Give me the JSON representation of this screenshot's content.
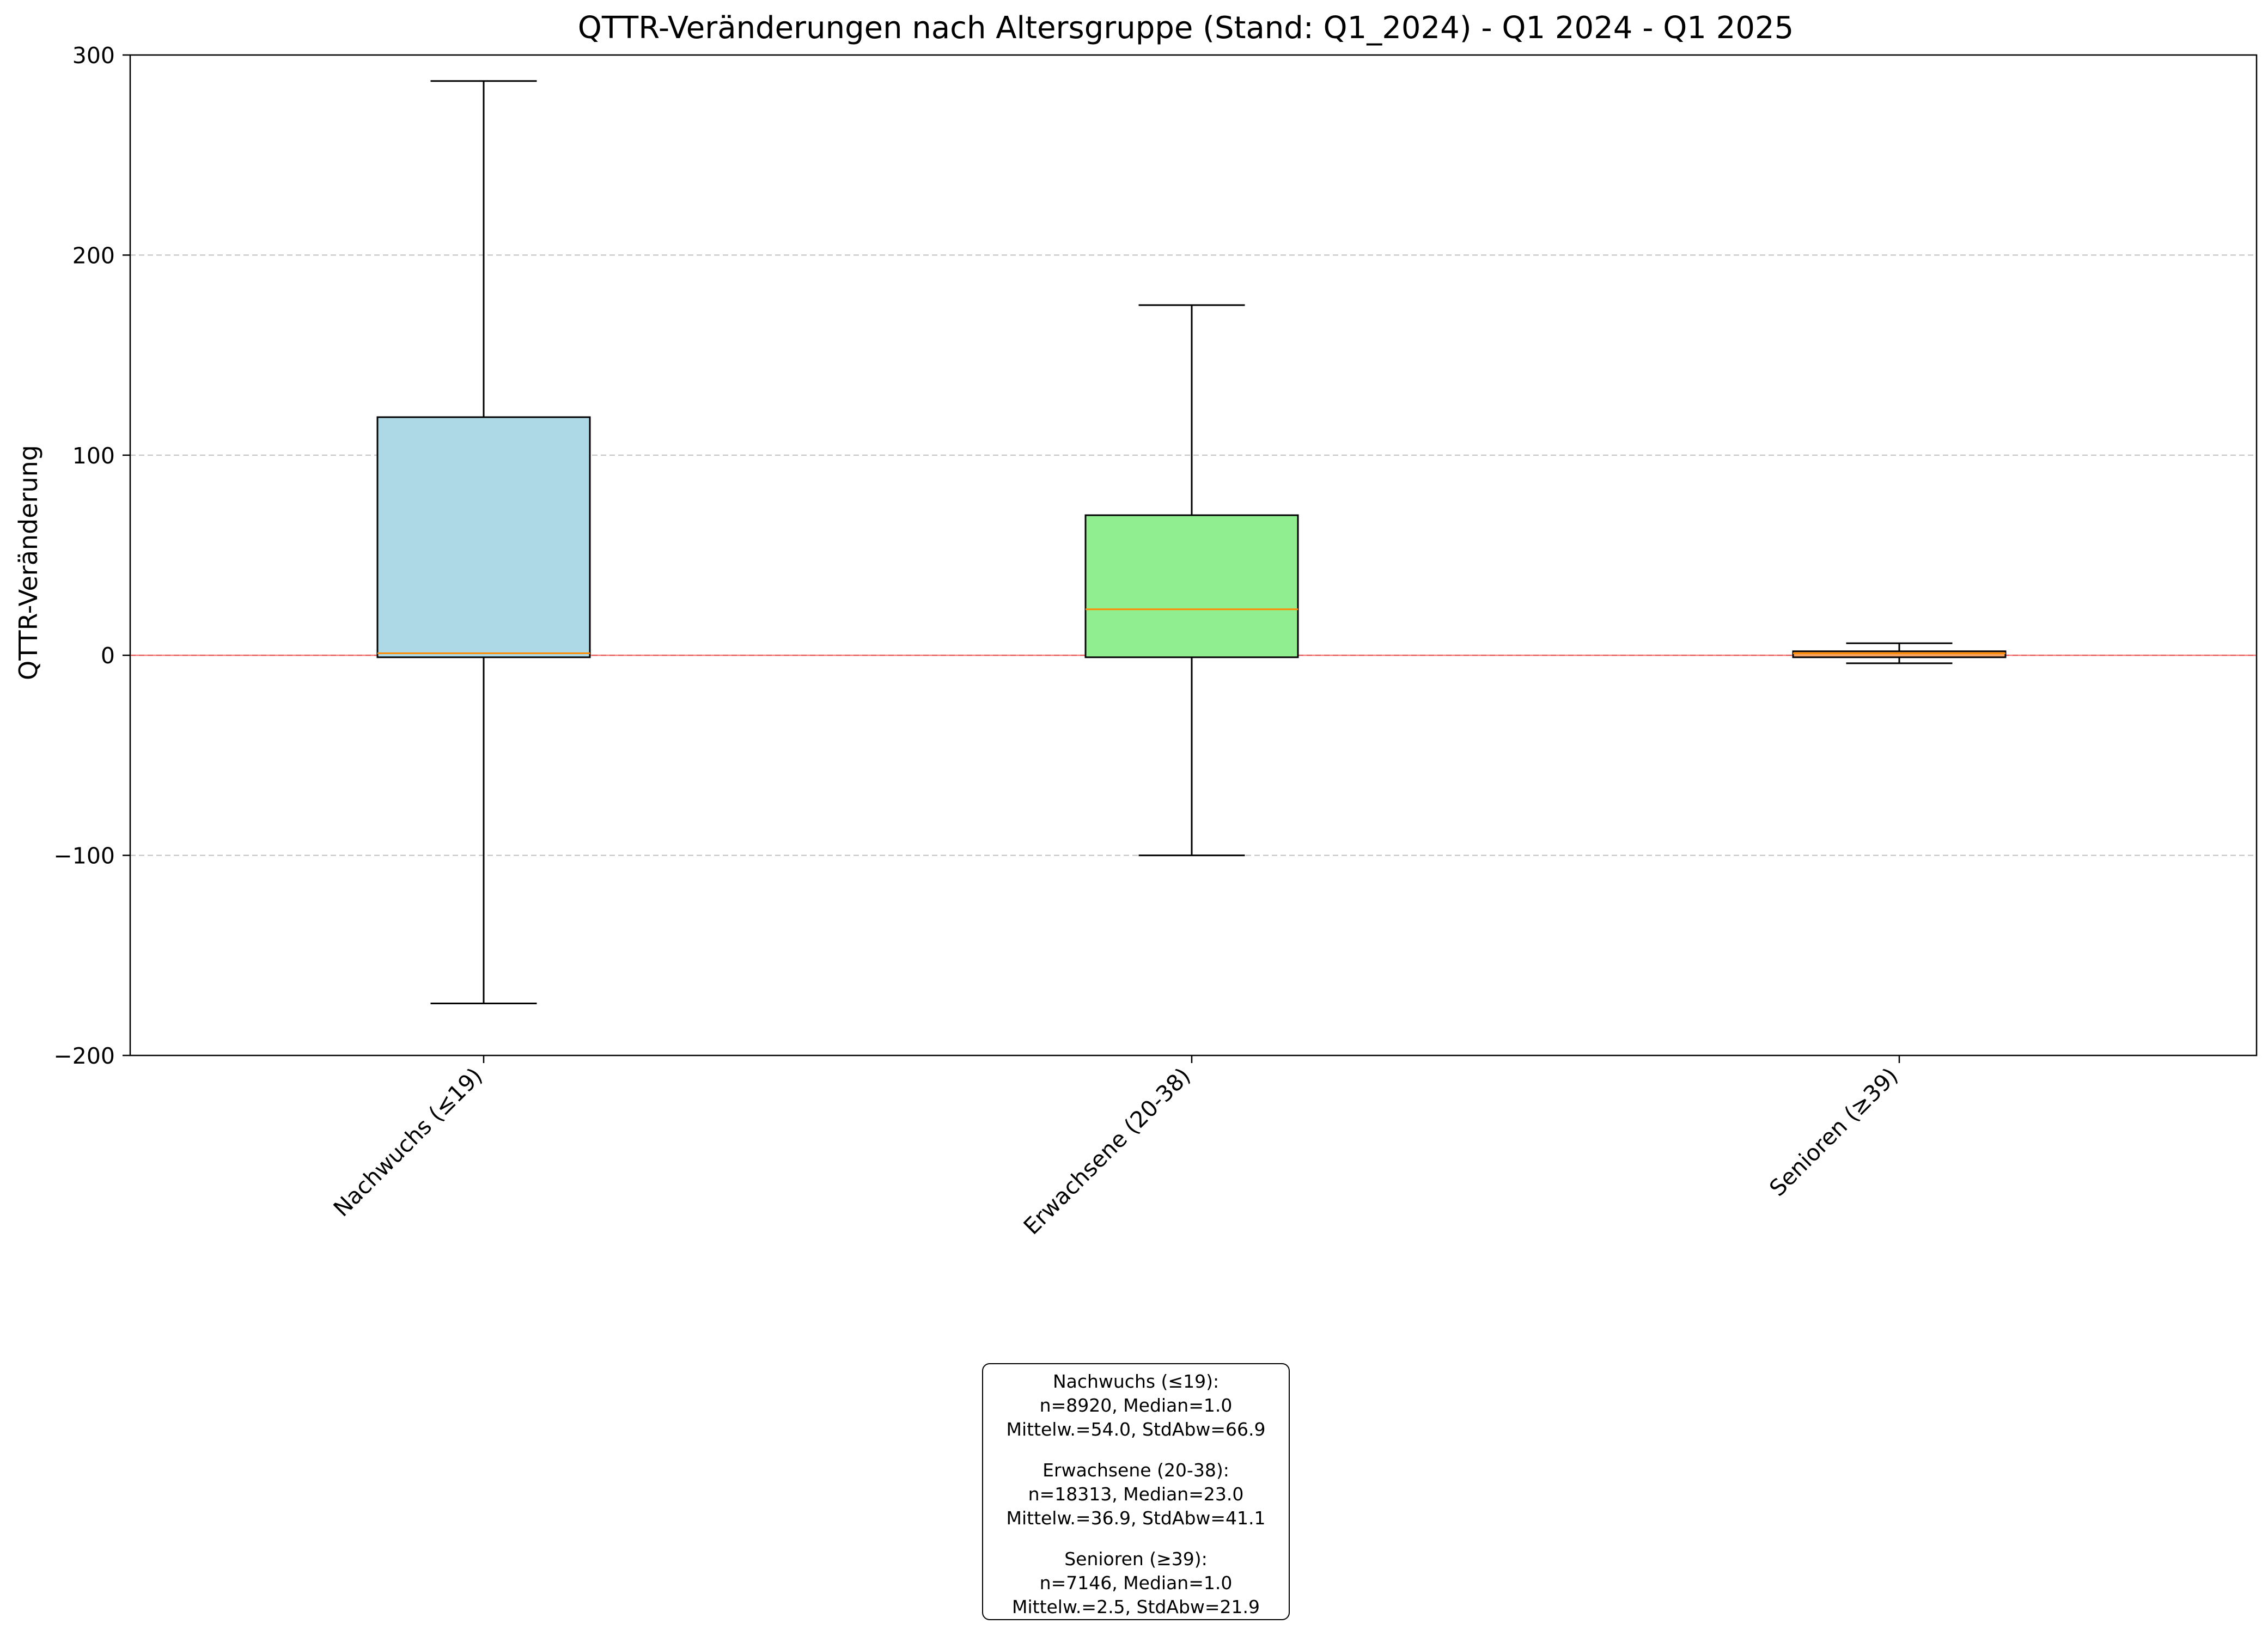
{
  "chart_data": {
    "type": "box",
    "title": "QTTR-Veränderungen nach Altersgruppe (Stand: Q1_2024) - Q1 2024 - Q1 2025",
    "xlabel": "",
    "ylabel": "QTTR-Veränderung",
    "ylim": [
      -200,
      300
    ],
    "yticks": [
      -200,
      -100,
      0,
      100,
      200,
      300
    ],
    "ytick_labels": [
      "−200",
      "−100",
      "0",
      "100",
      "200",
      "300"
    ],
    "grid": "y-dashed",
    "reference_line": {
      "y": 0,
      "color": "#ff0000"
    },
    "categories": [
      "Nachwuchs (≤19)",
      "Erwachsene (20-38)",
      "Senioren (≥39)"
    ],
    "series": [
      {
        "category": "Nachwuchs (≤19)",
        "whisker_low": -174,
        "q1": -1,
        "median": 1.0,
        "q3": 119,
        "whisker_high": 287,
        "color": "#add8e6"
      },
      {
        "category": "Erwachsene (20-38)",
        "whisker_low": -100,
        "q1": -1,
        "median": 23.0,
        "q3": 70,
        "whisker_high": 175,
        "color": "#90ee90"
      },
      {
        "category": "Senioren (≥39)",
        "whisker_low": -4,
        "q1": -1,
        "median": 1.0,
        "q3": 2,
        "whisker_high": 6,
        "color": "#f4a261"
      }
    ],
    "median_color": "#ff8c00"
  },
  "stats_box": [
    {
      "title": "Nachwuchs (≤19):",
      "line1": "n=8920, Median=1.0",
      "line2": "Mittelw.=54.0, StdAbw=66.9"
    },
    {
      "title": "Erwachsene (20-38):",
      "line1": "n=18313, Median=23.0",
      "line2": "Mittelw.=36.9, StdAbw=41.1"
    },
    {
      "title": "Senioren (≥39):",
      "line1": "n=7146, Median=1.0",
      "line2": "Mittelw.=2.5, StdAbw=21.9"
    }
  ]
}
